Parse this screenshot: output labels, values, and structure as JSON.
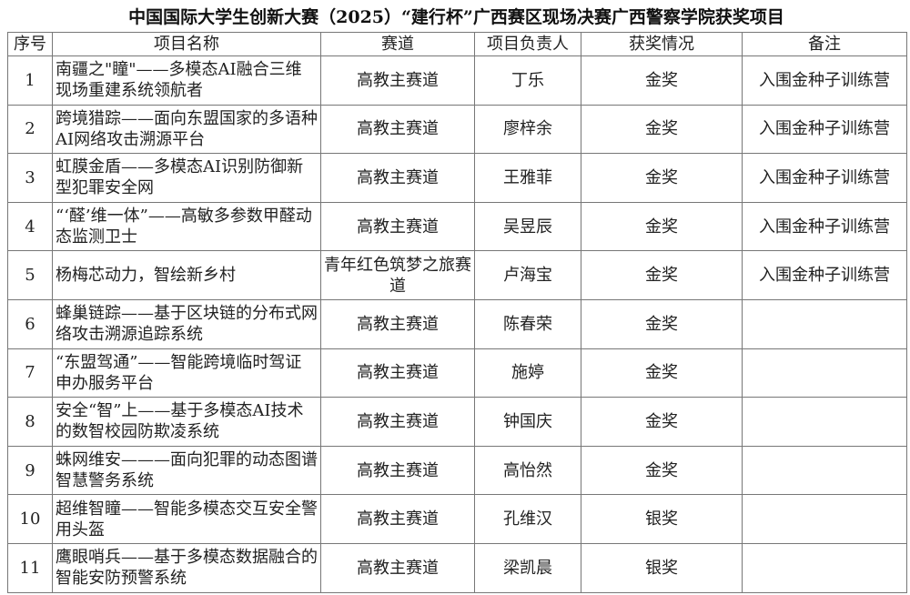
{
  "title": "中国国际大学生创新大赛（2025）“建行杯”广西赛区现场决赛广西警察学院获奖项目",
  "headers": [
    "序号",
    "项目名称",
    "赛道",
    "项目负责人",
    "获奖情况",
    "备注"
  ],
  "rows": [
    [
      "1",
      "南疆之\"瞳\"——多模态AI融合三维现场重建系统领航者",
      "高教主赛道",
      "丁乐",
      "金奖",
      "入围金种子训练营"
    ],
    [
      "2",
      "跨境猎踪——面向东盟国家的多语种AI网络攻击溯源平台",
      "高教主赛道",
      "廖梓余",
      "金奖",
      "入围金种子训练营"
    ],
    [
      "3",
      "虹膜金盾——多模态AI识别防御新型犯罪安全网",
      "高教主赛道",
      "王雅菲",
      "金奖",
      "入围金种子训练营"
    ],
    [
      "4",
      "“‘醛’维一体”——高敏多参数甲醛动态监测卫士",
      "高教主赛道",
      "吴昱辰",
      "金奖",
      "入围金种子训练营"
    ],
    [
      "5",
      "杨梅芯动力，智绘新乡村",
      "青年红色筑梦之旅赛道",
      "卢海宝",
      "金奖",
      "入围金种子训练营"
    ],
    [
      "6",
      "蜂巢链踪——基于区块链的分布式网络攻击溯源追踪系统",
      "高教主赛道",
      "陈春荣",
      "金奖",
      ""
    ],
    [
      "7",
      "“东盟驾通”——智能跨境临时驾证申办服务平台",
      "高教主赛道",
      "施婷",
      "金奖",
      ""
    ],
    [
      "8",
      "安全“智”上——基于多模态AI技术的数智校园防欺凌系统",
      "高教主赛道",
      "钟国庆",
      "金奖",
      ""
    ],
    [
      "9",
      "蛛网维安———面向犯罪的动态图谱智慧警务系统",
      "高教主赛道",
      "高怡然",
      "金奖",
      ""
    ],
    [
      "10",
      "超维智瞳——智能多模态交互安全警用头盔",
      "高教主赛道",
      "孔维汉",
      "银奖",
      ""
    ],
    [
      "11",
      "鹰眼哨兵——基于多模态数据融合的智能安防预警系统",
      "高教主赛道",
      "梁凯晨",
      "银奖",
      ""
    ]
  ]
}
